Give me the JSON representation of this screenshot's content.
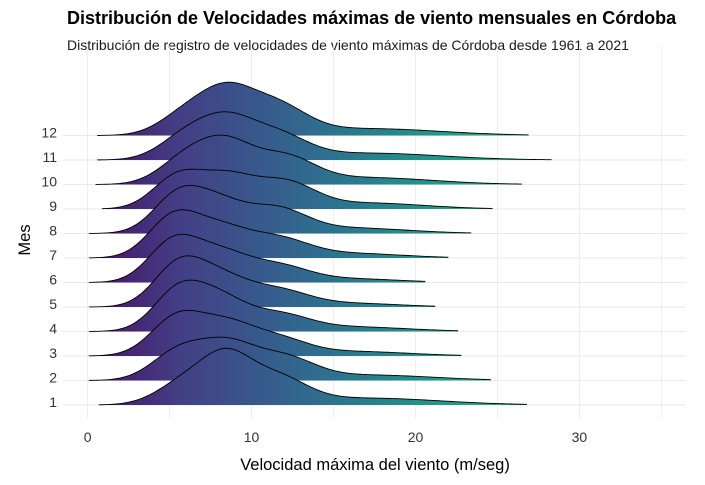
{
  "chart_data": {
    "type": "ridgeline",
    "title": "Distribución de Velocidades máximas de viento mensuales en Córdoba",
    "subtitle": "Distribución de registro de velocidades de viento máximas de Córdoba desde 1961 a 2021",
    "xlabel": "Velocidad máxima del viento (m/seg)",
    "ylabel": "Mes",
    "xlim": [
      -1.5,
      36.5
    ],
    "x_ticks": [
      0,
      10,
      20,
      30
    ],
    "categories": [
      "1",
      "2",
      "3",
      "4",
      "5",
      "6",
      "7",
      "8",
      "9",
      "10",
      "11",
      "12"
    ],
    "fill_gradient": [
      "#471063",
      "#433E85",
      "#365D8D",
      "#287D8E",
      "#1F9E89",
      "#35B779"
    ],
    "fill_gradient_note_range": [
      0,
      28
    ],
    "grid": true,
    "series": [
      {
        "name": "1",
        "min": 0.7,
        "max": 26.8,
        "peaks": [
          [
            6,
            0.5,
            1.7
          ],
          [
            8.5,
            0.9,
            1.5
          ],
          [
            11.5,
            0.55,
            1.8
          ],
          [
            17,
            0.15,
            4.5
          ]
        ]
      },
      {
        "name": "2",
        "min": 0.1,
        "max": 24.6,
        "peaks": [
          [
            5.5,
            0.6,
            1.6
          ],
          [
            8.5,
            0.75,
            1.7
          ],
          [
            12,
            0.45,
            1.8
          ],
          [
            17,
            0.12,
            4.0
          ]
        ]
      },
      {
        "name": "3",
        "min": 0.1,
        "max": 22.8,
        "peaks": [
          [
            5.5,
            0.85,
            1.6
          ],
          [
            8.5,
            0.6,
            1.6
          ],
          [
            11.5,
            0.35,
            1.8
          ],
          [
            16,
            0.1,
            3.5
          ]
        ]
      },
      {
        "name": "4",
        "min": 0.1,
        "max": 22.6,
        "peaks": [
          [
            5.5,
            0.85,
            1.5
          ],
          [
            8,
            0.65,
            1.6
          ],
          [
            11.5,
            0.35,
            1.9
          ],
          [
            16,
            0.1,
            3.5
          ]
        ]
      },
      {
        "name": "5",
        "min": 0.1,
        "max": 21.2,
        "peaks": [
          [
            5.5,
            0.85,
            1.5
          ],
          [
            8,
            0.6,
            1.7
          ],
          [
            11.5,
            0.35,
            1.9
          ],
          [
            16,
            0.08,
            3.0
          ]
        ]
      },
      {
        "name": "6",
        "min": 0.1,
        "max": 20.6,
        "peaks": [
          [
            5.2,
            0.85,
            1.5
          ],
          [
            8,
            0.6,
            1.7
          ],
          [
            11.5,
            0.35,
            1.9
          ],
          [
            16,
            0.08,
            3.0
          ]
        ]
      },
      {
        "name": "7",
        "min": 0.1,
        "max": 22.0,
        "peaks": [
          [
            5.2,
            0.85,
            1.5
          ],
          [
            8,
            0.6,
            1.7
          ],
          [
            11.5,
            0.4,
            1.9
          ],
          [
            16,
            0.1,
            3.2
          ]
        ]
      },
      {
        "name": "8",
        "min": 0.1,
        "max": 23.4,
        "peaks": [
          [
            5.5,
            0.8,
            1.5
          ],
          [
            8,
            0.6,
            1.6
          ],
          [
            11.5,
            0.5,
            1.8
          ],
          [
            16,
            0.12,
            3.5
          ]
        ]
      },
      {
        "name": "9",
        "min": 0.9,
        "max": 24.7,
        "peaks": [
          [
            5.5,
            0.7,
            1.5
          ],
          [
            8.5,
            0.65,
            1.6
          ],
          [
            12,
            0.55,
            1.8
          ],
          [
            17,
            0.13,
            3.5
          ]
        ]
      },
      {
        "name": "10",
        "min": 0.5,
        "max": 26.5,
        "peaks": [
          [
            6,
            0.55,
            1.6
          ],
          [
            8.5,
            0.8,
            1.6
          ],
          [
            12,
            0.55,
            1.8
          ],
          [
            17,
            0.15,
            4.0
          ]
        ]
      },
      {
        "name": "11",
        "min": 0.6,
        "max": 28.3,
        "peaks": [
          [
            6,
            0.5,
            1.6
          ],
          [
            8.5,
            0.75,
            1.6
          ],
          [
            11.5,
            0.5,
            1.8
          ],
          [
            17,
            0.15,
            4.5
          ]
        ]
      },
      {
        "name": "12",
        "min": 0.6,
        "max": 26.9,
        "peaks": [
          [
            6,
            0.45,
            1.6
          ],
          [
            8.5,
            0.85,
            1.6
          ],
          [
            11.5,
            0.6,
            1.8
          ],
          [
            17,
            0.15,
            4.5
          ]
        ]
      }
    ]
  }
}
